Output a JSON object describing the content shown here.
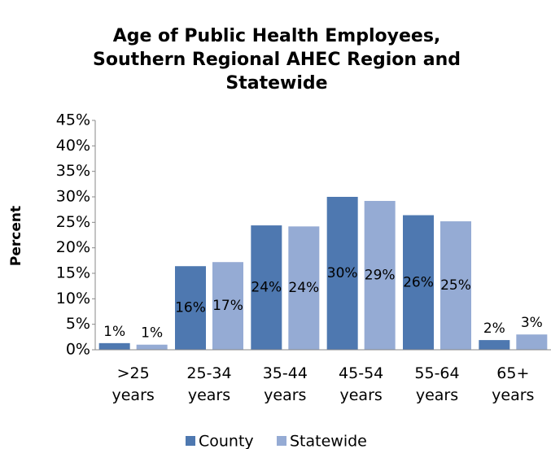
{
  "chart_data": {
    "type": "bar",
    "title": "Age of Public Health Employees, Southern Regional AHEC Region and Statewide",
    "y_label": "Percent",
    "categories": [
      ">25 years",
      "25-34 years",
      "35-44 years",
      "45-54 years",
      "55-64 years",
      "65+ years"
    ],
    "series": [
      {
        "name": "County",
        "color": "#4e78b0",
        "values": [
          1.3,
          16.4,
          24.4,
          30,
          26.4,
          1.9
        ],
        "value_labels": [
          "1%",
          "16%",
          "24%",
          "30%",
          "26%",
          "2%"
        ]
      },
      {
        "name": "Statewide",
        "color": "#95abd4",
        "values": [
          1,
          17.2,
          24.2,
          29.2,
          25.2,
          3
        ],
        "value_labels": [
          "1%",
          "17%",
          "24%",
          "29%",
          "25%",
          "3%"
        ]
      }
    ],
    "ylim": [
      0,
      45
    ],
    "yticks": [
      {
        "value": 0,
        "label": "0%"
      },
      {
        "value": 5,
        "label": "5%"
      },
      {
        "value": 10,
        "label": "10%"
      },
      {
        "value": 15,
        "label": "15%"
      },
      {
        "value": 20,
        "label": "20%"
      },
      {
        "value": 25,
        "label": "25%"
      },
      {
        "value": 30,
        "label": "30%"
      },
      {
        "value": 35,
        "label": "35%"
      },
      {
        "value": 40,
        "label": "40%"
      },
      {
        "value": 45,
        "label": "45%"
      }
    ],
    "legend": "bottom"
  }
}
